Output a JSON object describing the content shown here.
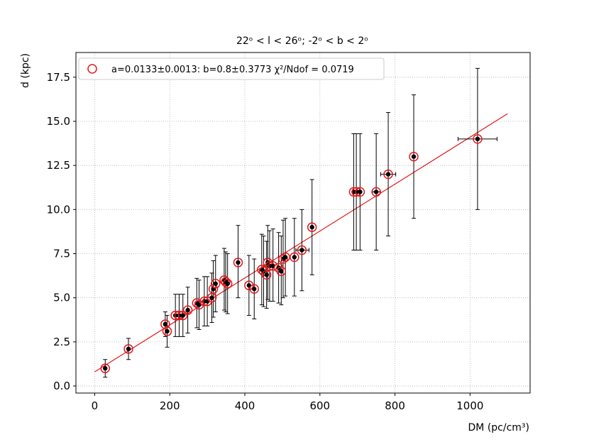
{
  "chart_data": {
    "type": "scatter",
    "title": "22ᵒ < l < 26ᵒ; -2ᵒ < b < 2ᵒ",
    "xlabel": "DM (pc/cm³)",
    "ylabel": "d (kpc)",
    "xlim": [
      -50,
      1160
    ],
    "ylim": [
      -0.4,
      18.9
    ],
    "xticks": [
      0,
      200,
      400,
      600,
      800,
      1000
    ],
    "yticks": [
      0.0,
      2.5,
      5.0,
      7.5,
      10.0,
      12.5,
      15.0,
      17.5
    ],
    "xtick_labels": [
      "0",
      "200",
      "400",
      "600",
      "800",
      "1000"
    ],
    "ytick_labels": [
      "0.0",
      "2.5",
      "5.0",
      "7.5",
      "10.0",
      "12.5",
      "15.0",
      "17.5"
    ],
    "grid": true,
    "legend_position": "top-left",
    "legend_label": "a=0.0133±0.0013: b=0.8±0.3773 χ²/Ndof = 0.0719",
    "fit_line": {
      "a": 0.0133,
      "b": 0.8,
      "x_range": [
        0,
        1100
      ],
      "color": "#e31a1c"
    },
    "marker_edge_color": "#e31a1c",
    "point_color": "#000000",
    "points": [
      {
        "x": 28,
        "y": 1.0,
        "ylo": 0.5,
        "yhi": 1.5
      },
      {
        "x": 90,
        "y": 2.1,
        "ylo": 1.5,
        "yhi": 2.7
      },
      {
        "x": 188,
        "y": 3.5,
        "ylo": 2.8,
        "yhi": 4.2
      },
      {
        "x": 193,
        "y": 3.1,
        "ylo": 2.2,
        "yhi": 4.0
      },
      {
        "x": 215,
        "y": 4.0,
        "ylo": 2.8,
        "yhi": 5.2
      },
      {
        "x": 225,
        "y": 4.0,
        "ylo": 2.8,
        "yhi": 5.2
      },
      {
        "x": 235,
        "y": 4.0,
        "ylo": 2.8,
        "yhi": 5.2
      },
      {
        "x": 248,
        "y": 4.3,
        "ylo": 3.0,
        "yhi": 5.6
      },
      {
        "x": 272,
        "y": 4.7,
        "ylo": 3.3,
        "yhi": 6.1
      },
      {
        "x": 278,
        "y": 4.6,
        "ylo": 3.2,
        "yhi": 6.0
      },
      {
        "x": 292,
        "y": 4.8,
        "ylo": 3.4,
        "yhi": 6.2
      },
      {
        "x": 300,
        "y": 4.8,
        "ylo": 3.4,
        "yhi": 6.2
      },
      {
        "x": 312,
        "y": 5.0,
        "ylo": 3.6,
        "yhi": 6.4
      },
      {
        "x": 316,
        "y": 5.5,
        "ylo": 3.9,
        "yhi": 7.1
      },
      {
        "x": 322,
        "y": 5.8,
        "ylo": 4.2,
        "yhi": 7.4
      },
      {
        "x": 345,
        "y": 6.0,
        "ylo": 4.3,
        "yhi": 7.8
      },
      {
        "x": 349,
        "y": 5.9,
        "ylo": 4.2,
        "yhi": 7.6
      },
      {
        "x": 354,
        "y": 5.8,
        "ylo": 4.1,
        "yhi": 7.5
      },
      {
        "x": 382,
        "y": 7.0,
        "ylo": 5.0,
        "yhi": 9.1
      },
      {
        "x": 411,
        "y": 5.7,
        "ylo": 4.0,
        "yhi": 7.4
      },
      {
        "x": 425,
        "y": 5.5,
        "ylo": 3.8,
        "yhi": 7.2
      },
      {
        "x": 445,
        "y": 6.6,
        "ylo": 4.6,
        "yhi": 8.6
      },
      {
        "x": 450,
        "y": 6.5,
        "ylo": 4.5,
        "yhi": 8.5
      },
      {
        "x": 458,
        "y": 6.3,
        "ylo": 4.4,
        "yhi": 8.2
      },
      {
        "x": 461,
        "y": 7.0,
        "ylo": 4.9,
        "yhi": 9.1
      },
      {
        "x": 466,
        "y": 6.8,
        "ylo": 4.8,
        "yhi": 8.8
      },
      {
        "x": 475,
        "y": 6.8,
        "ylo": 4.8,
        "yhi": 8.9
      },
      {
        "x": 490,
        "y": 6.7,
        "ylo": 4.7,
        "yhi": 8.7
      },
      {
        "x": 497,
        "y": 6.5,
        "ylo": 4.6,
        "yhi": 8.5
      },
      {
        "x": 502,
        "y": 7.2,
        "ylo": 5.0,
        "yhi": 9.4
      },
      {
        "x": 508,
        "y": 7.3,
        "ylo": 5.1,
        "yhi": 9.5
      },
      {
        "x": 532,
        "y": 7.3,
        "ylo": 5.1,
        "yhi": 9.5
      },
      {
        "x": 552,
        "y": 7.7,
        "ylo": 5.4,
        "yhi": 10.0,
        "xlo": 536,
        "xhi": 571
      },
      {
        "x": 579,
        "y": 9.0,
        "ylo": 6.3,
        "yhi": 11.7
      },
      {
        "x": 690,
        "y": 11.0,
        "ylo": 7.7,
        "yhi": 14.3
      },
      {
        "x": 697,
        "y": 11.0,
        "ylo": 7.7,
        "yhi": 14.3
      },
      {
        "x": 707,
        "y": 11.0,
        "ylo": 7.7,
        "yhi": 14.3
      },
      {
        "x": 750,
        "y": 11.0,
        "ylo": 7.7,
        "yhi": 14.3,
        "xlo": 740,
        "xhi": 760
      },
      {
        "x": 782,
        "y": 12.0,
        "ylo": 8.5,
        "yhi": 15.5,
        "xlo": 762,
        "xhi": 802
      },
      {
        "x": 850,
        "y": 13.0,
        "ylo": 9.5,
        "yhi": 16.5
      },
      {
        "x": 1020,
        "y": 14.0,
        "ylo": 10.0,
        "yhi": 18.0,
        "xlo": 968,
        "xhi": 1072
      }
    ]
  }
}
